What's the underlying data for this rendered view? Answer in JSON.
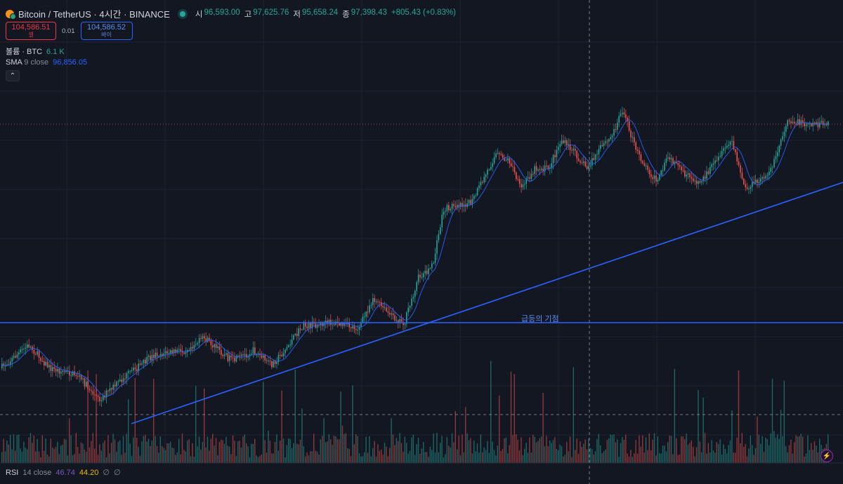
{
  "header": {
    "symbol": "Bitcoin / TetherUS · 4시간 · BINANCE",
    "ohlc": [
      {
        "key": "시",
        "value": "96,593.00"
      },
      {
        "key": "고",
        "value": "97,625.76"
      },
      {
        "key": "저",
        "value": "95,658.24"
      },
      {
        "key": "종",
        "value": "97,398.43"
      }
    ],
    "change": "+805.43 (+0.83%)"
  },
  "trade": {
    "sell_price": "104,586.51",
    "sell_label": "셀",
    "spread": "0.01",
    "buy_price": "104,586.52",
    "buy_label": "바이"
  },
  "volume_indicator": {
    "label": "볼륨 · BTC",
    "value": "6.1 K"
  },
  "sma_indicator": {
    "name": "SMA",
    "params": "9 close",
    "value": "96,856.05"
  },
  "annotation": "급등의 기점",
  "rsi": {
    "name": "RSI",
    "params": "14 close",
    "value1": "46.74",
    "value2": "44.20",
    "extra1": "∅",
    "extra2": "∅"
  },
  "colors": {
    "background": "#131722",
    "up": "#26a69a",
    "down": "#ef5350",
    "trendline": "#2962ff",
    "sma": "#2962ff"
  },
  "icons": {
    "collapse": "chevron-up-icon",
    "alert": "lightning-icon"
  }
}
